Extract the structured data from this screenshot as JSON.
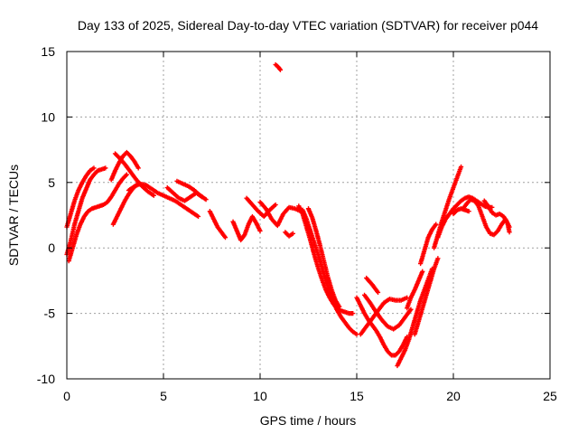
{
  "chart_data": {
    "type": "scatter",
    "title": "Day 133 of 2025, Sidereal Day-to-day VTEC variation (SDTVAR) for receiver p044",
    "xlabel": "GPS time / hours",
    "ylabel": "SDTVAR / TECUs",
    "xlim": [
      0,
      25
    ],
    "ylim": [
      -10,
      15
    ],
    "xticks": [
      "0",
      "5",
      "10",
      "15",
      "20",
      "25"
    ],
    "yticks": [
      "-10",
      "-5",
      "0",
      "5",
      "10",
      "15"
    ],
    "grid": true,
    "marker": "plus",
    "color": "#ff0000",
    "series": [
      {
        "points": [
          [
            0.0,
            -0.5
          ],
          [
            0.2,
            0.5
          ],
          [
            0.4,
            1.8
          ],
          [
            0.6,
            2.8
          ],
          [
            0.8,
            3.8
          ],
          [
            1.0,
            4.5
          ],
          [
            1.2,
            5.2
          ],
          [
            1.4,
            5.6
          ],
          [
            1.6,
            5.9
          ],
          [
            1.8,
            6.0
          ],
          [
            2.0,
            6.1
          ]
        ]
      },
      {
        "points": [
          [
            0.0,
            1.6
          ],
          [
            0.2,
            2.6
          ],
          [
            0.4,
            3.6
          ],
          [
            0.6,
            4.4
          ],
          [
            0.8,
            5.0
          ],
          [
            1.0,
            5.5
          ],
          [
            1.2,
            5.9
          ],
          [
            1.4,
            6.1
          ]
        ]
      },
      {
        "points": [
          [
            0.1,
            -1.0
          ],
          [
            0.3,
            0.0
          ],
          [
            0.5,
            1.0
          ],
          [
            0.7,
            1.8
          ],
          [
            0.9,
            2.4
          ],
          [
            1.1,
            2.8
          ],
          [
            1.3,
            3.0
          ],
          [
            1.5,
            3.1
          ],
          [
            1.7,
            3.2
          ],
          [
            1.9,
            3.3
          ],
          [
            2.1,
            3.5
          ],
          [
            2.3,
            3.9
          ],
          [
            2.5,
            4.4
          ],
          [
            2.7,
            4.9
          ],
          [
            2.9,
            5.3
          ],
          [
            3.1,
            5.6
          ]
        ]
      },
      {
        "points": [
          [
            2.4,
            1.8
          ],
          [
            2.6,
            2.4
          ],
          [
            2.8,
            3.0
          ],
          [
            3.0,
            3.6
          ],
          [
            3.2,
            4.1
          ],
          [
            3.4,
            4.5
          ],
          [
            3.6,
            4.8
          ]
        ]
      },
      {
        "points": [
          [
            2.3,
            5.2
          ],
          [
            2.5,
            5.9
          ],
          [
            2.7,
            6.5
          ],
          [
            2.9,
            7.0
          ],
          [
            3.1,
            7.3
          ],
          [
            3.3,
            7.0
          ],
          [
            3.5,
            6.6
          ],
          [
            3.7,
            6.1
          ]
        ]
      },
      {
        "points": [
          [
            2.5,
            7.2
          ],
          [
            2.7,
            6.9
          ],
          [
            3.0,
            6.4
          ],
          [
            3.3,
            5.8
          ],
          [
            3.6,
            5.2
          ],
          [
            3.9,
            4.7
          ],
          [
            4.2,
            4.3
          ],
          [
            4.5,
            4.0
          ]
        ]
      },
      {
        "points": [
          [
            3.2,
            4.4
          ],
          [
            3.5,
            4.7
          ],
          [
            3.8,
            4.9
          ],
          [
            4.1,
            4.8
          ],
          [
            4.4,
            4.5
          ],
          [
            4.7,
            4.2
          ],
          [
            5.0,
            4.0
          ],
          [
            5.3,
            3.8
          ],
          [
            5.6,
            3.6
          ],
          [
            5.9,
            3.3
          ],
          [
            6.2,
            3.0
          ],
          [
            6.5,
            2.7
          ],
          [
            6.8,
            2.4
          ]
        ]
      },
      {
        "points": [
          [
            5.2,
            4.6
          ],
          [
            5.5,
            4.2
          ],
          [
            5.8,
            3.8
          ],
          [
            6.1,
            3.6
          ],
          [
            6.4,
            3.9
          ],
          [
            6.7,
            4.2
          ],
          [
            7.0,
            3.9
          ]
        ]
      },
      {
        "points": [
          [
            5.7,
            5.1
          ],
          [
            6.0,
            4.9
          ],
          [
            6.3,
            4.7
          ],
          [
            6.6,
            4.4
          ],
          [
            6.9,
            4.0
          ],
          [
            7.2,
            3.7
          ]
        ]
      },
      {
        "points": [
          [
            7.4,
            2.8
          ],
          [
            7.6,
            2.2
          ],
          [
            7.8,
            1.6
          ],
          [
            8.0,
            1.2
          ],
          [
            8.2,
            0.8
          ]
        ]
      },
      {
        "points": [
          [
            8.6,
            2.0
          ],
          [
            8.8,
            1.3
          ],
          [
            9.0,
            0.6
          ],
          [
            9.2,
            1.0
          ],
          [
            9.4,
            1.8
          ],
          [
            9.6,
            2.4
          ],
          [
            9.8,
            1.9
          ],
          [
            10.0,
            1.3
          ]
        ]
      },
      {
        "points": [
          [
            9.3,
            3.8
          ],
          [
            9.6,
            3.3
          ],
          [
            9.9,
            2.8
          ],
          [
            10.2,
            2.4
          ],
          [
            10.5,
            2.9
          ],
          [
            10.8,
            3.3
          ]
        ]
      },
      {
        "points": [
          [
            10.0,
            3.5
          ],
          [
            10.3,
            3.0
          ],
          [
            10.6,
            2.2
          ],
          [
            10.9,
            1.7
          ],
          [
            11.2,
            2.6
          ],
          [
            11.5,
            3.1
          ],
          [
            11.8,
            3.0
          ],
          [
            12.1,
            2.8
          ]
        ]
      },
      {
        "points": [
          [
            10.8,
            14.0
          ],
          [
            10.95,
            13.8
          ],
          [
            11.05,
            13.6
          ]
        ]
      },
      {
        "points": [
          [
            11.3,
            1.2
          ],
          [
            11.5,
            0.9
          ],
          [
            11.7,
            1.1
          ]
        ]
      },
      {
        "points": [
          [
            12.0,
            3.2
          ],
          [
            12.2,
            2.6
          ],
          [
            12.4,
            1.6
          ],
          [
            12.6,
            0.6
          ],
          [
            12.8,
            -0.5
          ],
          [
            13.0,
            -1.5
          ],
          [
            13.2,
            -2.4
          ],
          [
            13.4,
            -3.2
          ],
          [
            13.6,
            -3.8
          ],
          [
            13.8,
            -4.3
          ],
          [
            14.0,
            -4.6
          ],
          [
            14.2,
            -4.8
          ],
          [
            14.4,
            -4.9
          ],
          [
            14.6,
            -5.0
          ],
          [
            14.8,
            -5.0
          ]
        ]
      },
      {
        "points": [
          [
            12.2,
            2.9
          ],
          [
            12.4,
            2.2
          ],
          [
            12.6,
            1.3
          ],
          [
            12.8,
            0.4
          ],
          [
            13.0,
            -0.5
          ],
          [
            13.2,
            -1.5
          ],
          [
            13.4,
            -2.5
          ],
          [
            13.6,
            -3.4
          ],
          [
            13.8,
            -4.2
          ],
          [
            14.0,
            -4.8
          ],
          [
            14.2,
            -5.3
          ],
          [
            14.4,
            -5.7
          ],
          [
            14.6,
            -6.1
          ],
          [
            14.8,
            -6.4
          ],
          [
            15.0,
            -6.6
          ]
        ]
      },
      {
        "points": [
          [
            12.5,
            3.0
          ],
          [
            12.7,
            2.3
          ],
          [
            12.9,
            1.3
          ],
          [
            13.1,
            0.2
          ],
          [
            13.3,
            -1.0
          ],
          [
            13.5,
            -2.2
          ],
          [
            13.7,
            -3.2
          ],
          [
            13.9,
            -4.0
          ],
          [
            14.1,
            -4.5
          ]
        ]
      },
      {
        "points": [
          [
            15.0,
            -3.8
          ],
          [
            15.2,
            -4.4
          ],
          [
            15.4,
            -5.0
          ],
          [
            15.6,
            -5.5
          ],
          [
            15.8,
            -5.9
          ],
          [
            16.0,
            -6.3
          ],
          [
            16.2,
            -6.8
          ],
          [
            16.4,
            -7.4
          ],
          [
            16.6,
            -7.9
          ],
          [
            16.8,
            -8.2
          ],
          [
            17.0,
            -8.2
          ],
          [
            17.2,
            -7.9
          ],
          [
            17.4,
            -7.4
          ],
          [
            17.6,
            -6.8
          ]
        ]
      },
      {
        "points": [
          [
            15.4,
            -3.6
          ],
          [
            15.7,
            -4.2
          ],
          [
            16.0,
            -4.9
          ],
          [
            16.3,
            -5.5
          ],
          [
            16.6,
            -6.0
          ],
          [
            16.9,
            -6.2
          ],
          [
            17.2,
            -5.9
          ],
          [
            17.5,
            -5.3
          ],
          [
            17.8,
            -4.7
          ]
        ]
      },
      {
        "points": [
          [
            15.2,
            -6.6
          ],
          [
            15.5,
            -6.0
          ],
          [
            15.8,
            -5.4
          ],
          [
            16.1,
            -4.8
          ],
          [
            16.4,
            -4.2
          ],
          [
            16.7,
            -3.9
          ],
          [
            17.0,
            -4.0
          ],
          [
            17.3,
            -4.0
          ],
          [
            17.6,
            -3.8
          ]
        ]
      },
      {
        "points": [
          [
            15.5,
            -2.3
          ],
          [
            15.8,
            -2.8
          ],
          [
            16.1,
            -3.4
          ]
        ]
      },
      {
        "points": [
          [
            17.1,
            -9.0
          ],
          [
            17.3,
            -8.4
          ],
          [
            17.5,
            -7.8
          ],
          [
            17.7,
            -7.0
          ],
          [
            17.9,
            -6.0
          ],
          [
            18.1,
            -5.0
          ],
          [
            18.3,
            -4.0
          ],
          [
            18.5,
            -3.2
          ],
          [
            18.7,
            -2.4
          ],
          [
            18.9,
            -1.6
          ]
        ]
      },
      {
        "points": [
          [
            17.6,
            -4.6
          ],
          [
            17.8,
            -3.8
          ],
          [
            18.0,
            -3.2
          ],
          [
            18.2,
            -2.5
          ],
          [
            18.4,
            -1.8
          ]
        ]
      },
      {
        "points": [
          [
            18.0,
            -6.6
          ],
          [
            18.2,
            -5.6
          ],
          [
            18.4,
            -4.6
          ],
          [
            18.6,
            -3.6
          ],
          [
            18.8,
            -2.6
          ],
          [
            19.0,
            -1.6
          ],
          [
            19.2,
            -0.8
          ]
        ]
      },
      {
        "points": [
          [
            18.3,
            -1.2
          ],
          [
            18.5,
            -0.2
          ],
          [
            18.7,
            0.8
          ],
          [
            18.9,
            1.4
          ],
          [
            19.1,
            1.8
          ]
        ]
      },
      {
        "points": [
          [
            19.0,
            0.0
          ],
          [
            19.2,
            1.0
          ],
          [
            19.4,
            2.0
          ],
          [
            19.6,
            2.9
          ],
          [
            19.8,
            3.8
          ],
          [
            20.0,
            4.6
          ],
          [
            20.2,
            5.4
          ],
          [
            20.4,
            6.2
          ]
        ]
      },
      {
        "points": [
          [
            19.2,
            0.8
          ],
          [
            19.4,
            1.6
          ],
          [
            19.6,
            2.2
          ],
          [
            19.8,
            2.6
          ],
          [
            20.0,
            3.0
          ],
          [
            20.2,
            3.3
          ],
          [
            20.4,
            3.6
          ],
          [
            20.6,
            3.8
          ],
          [
            20.8,
            3.9
          ],
          [
            21.0,
            3.8
          ],
          [
            21.2,
            3.6
          ],
          [
            21.4,
            3.4
          ],
          [
            21.6,
            3.2
          ],
          [
            21.8,
            3.1
          ],
          [
            22.0,
            3.1
          ]
        ]
      },
      {
        "points": [
          [
            20.5,
            3.0
          ],
          [
            20.7,
            3.4
          ],
          [
            20.9,
            3.7
          ],
          [
            21.1,
            3.6
          ],
          [
            21.3,
            3.2
          ],
          [
            21.5,
            2.4
          ],
          [
            21.7,
            1.6
          ],
          [
            21.9,
            1.1
          ],
          [
            22.1,
            1.0
          ],
          [
            22.3,
            1.3
          ],
          [
            22.5,
            1.8
          ],
          [
            22.7,
            2.2
          ],
          [
            22.9,
            1.6
          ]
        ]
      },
      {
        "points": [
          [
            21.6,
            3.6
          ],
          [
            21.8,
            3.2
          ],
          [
            22.0,
            2.7
          ],
          [
            22.2,
            2.5
          ],
          [
            22.4,
            2.6
          ],
          [
            22.6,
            2.4
          ],
          [
            22.8,
            1.9
          ],
          [
            22.9,
            1.2
          ]
        ]
      },
      {
        "points": [
          [
            20.0,
            2.6
          ],
          [
            20.2,
            2.9
          ],
          [
            20.4,
            3.0
          ],
          [
            20.6,
            2.9
          ],
          [
            20.8,
            2.8
          ]
        ]
      }
    ]
  }
}
